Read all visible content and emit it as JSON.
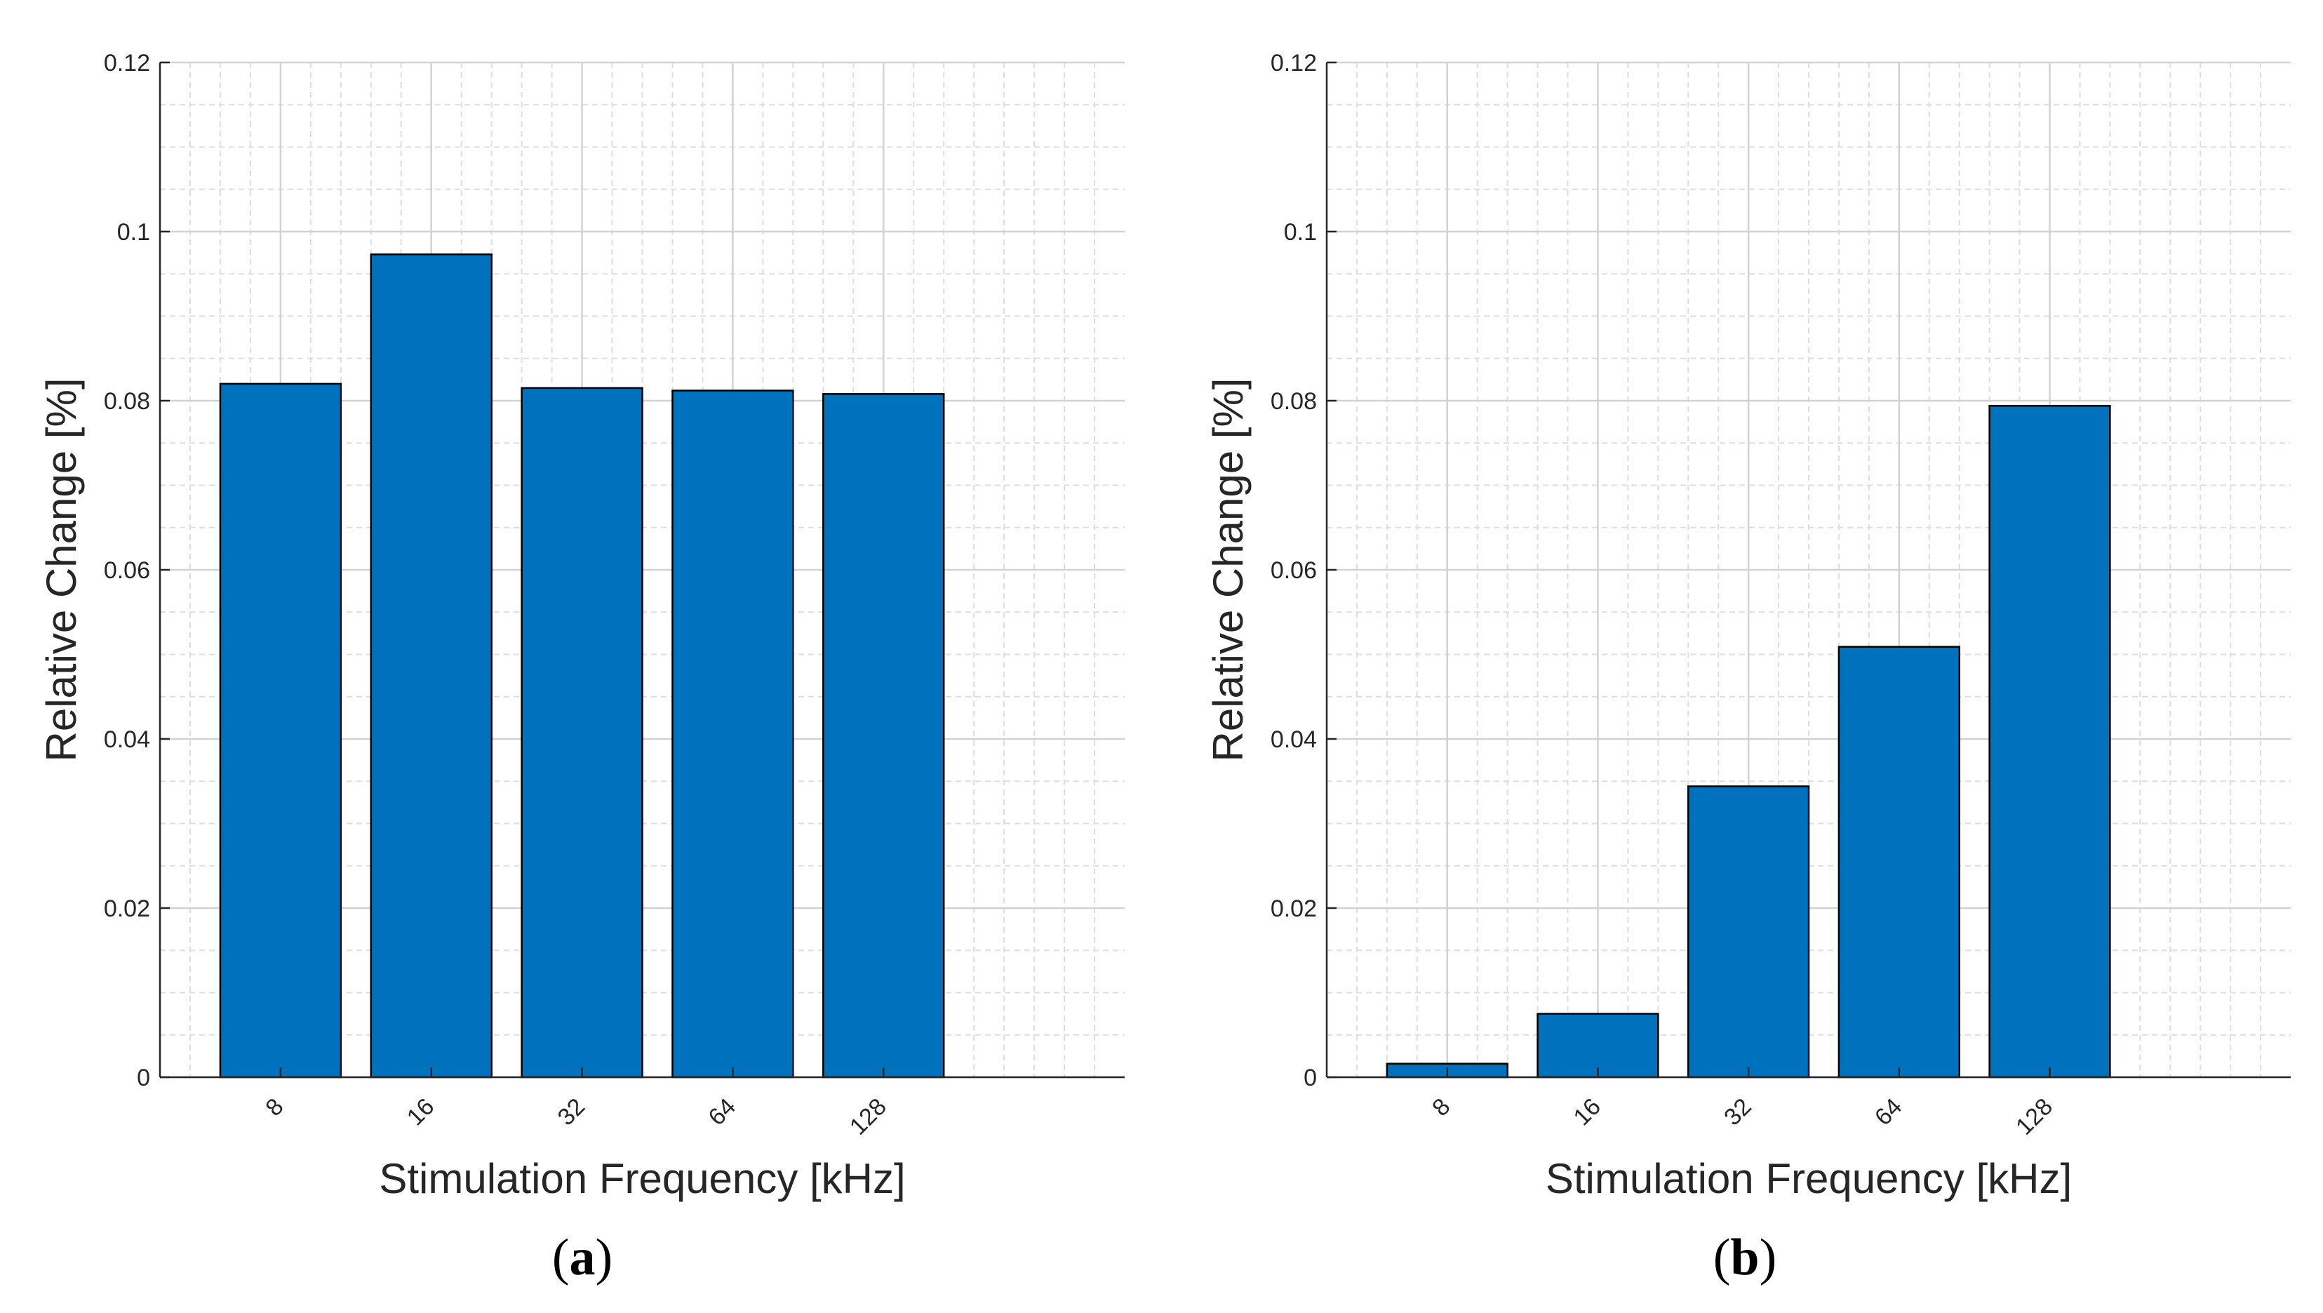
{
  "figure": {
    "captions": [
      {
        "open": "(",
        "letter": "a",
        "close": ")"
      },
      {
        "open": "(",
        "letter": "b",
        "close": ")"
      }
    ]
  },
  "chart_data": [
    {
      "type": "bar",
      "panel": "a",
      "title": "",
      "categories": [
        "8",
        "16",
        "32",
        "64",
        "128"
      ],
      "values": [
        0.082,
        0.0973,
        0.0815,
        0.0812,
        0.0808
      ],
      "xlabel": "Stimulation Frequency [kHz]",
      "ylabel": "Relative Change [%]",
      "ylim": [
        0,
        0.12
      ],
      "yticks": [
        0,
        0.02,
        0.04,
        0.06,
        0.08,
        0.1,
        0.12
      ],
      "ytick_labels": [
        "0",
        "0.02",
        "0.04",
        "0.06",
        "0.08",
        "0.1",
        "0.12"
      ],
      "x_range": [
        0.2,
        6.6
      ],
      "grid": true,
      "minor_grid": true,
      "bar_color": "#0072BD",
      "edge_color": "#000000",
      "grid_color": "#dedede",
      "axis_color": "#262626"
    },
    {
      "type": "bar",
      "panel": "b",
      "title": "",
      "categories": [
        "8",
        "16",
        "32",
        "64",
        "128"
      ],
      "values": [
        0.0016,
        0.0075,
        0.0344,
        0.0509,
        0.0794
      ],
      "xlabel": "Stimulation Frequency [kHz]",
      "ylabel": "Relative Change [%]",
      "ylim": [
        0,
        0.12
      ],
      "yticks": [
        0,
        0.02,
        0.04,
        0.06,
        0.08,
        0.1,
        0.12
      ],
      "ytick_labels": [
        "0",
        "0.02",
        "0.04",
        "0.06",
        "0.08",
        "0.1",
        "0.12"
      ],
      "x_range": [
        0.2,
        6.6
      ],
      "grid": true,
      "minor_grid": true,
      "bar_color": "#0072BD",
      "edge_color": "#000000",
      "grid_color": "#dedede",
      "axis_color": "#262626"
    }
  ]
}
